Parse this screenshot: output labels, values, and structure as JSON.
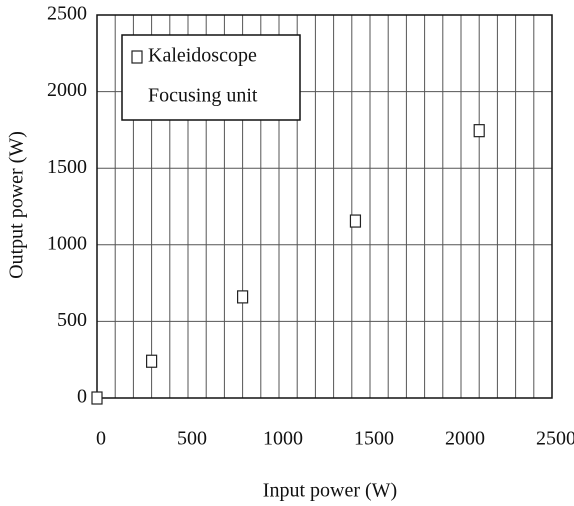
{
  "chart_data": {
    "type": "scatter",
    "xlabel": "Input power (W)",
    "ylabel": "Output power (W)",
    "xlim": [
      0,
      2500
    ],
    "ylim": [
      0,
      2500
    ],
    "xticks": [
      0,
      500,
      1000,
      1500,
      2000,
      2500
    ],
    "yticks": [
      0,
      500,
      1000,
      1500,
      2000,
      2500
    ],
    "xminorticks": [
      100,
      200,
      300,
      400,
      600,
      700,
      800,
      900,
      1100,
      1200,
      1300,
      1400,
      1600,
      1700,
      1800,
      1900,
      2100,
      2200,
      2300,
      2400
    ],
    "grid": true,
    "legend": "upper left",
    "series": [
      {
        "name": "Kaleidoscope",
        "color": "#222222",
        "marker": "square",
        "x": [
          0,
          300,
          800,
          1420,
          2100
        ],
        "values": [
          0,
          240,
          660,
          1155,
          1745
        ]
      },
      {
        "name": "Focusing unit",
        "color": "#222222",
        "x": [],
        "values": []
      }
    ]
  }
}
